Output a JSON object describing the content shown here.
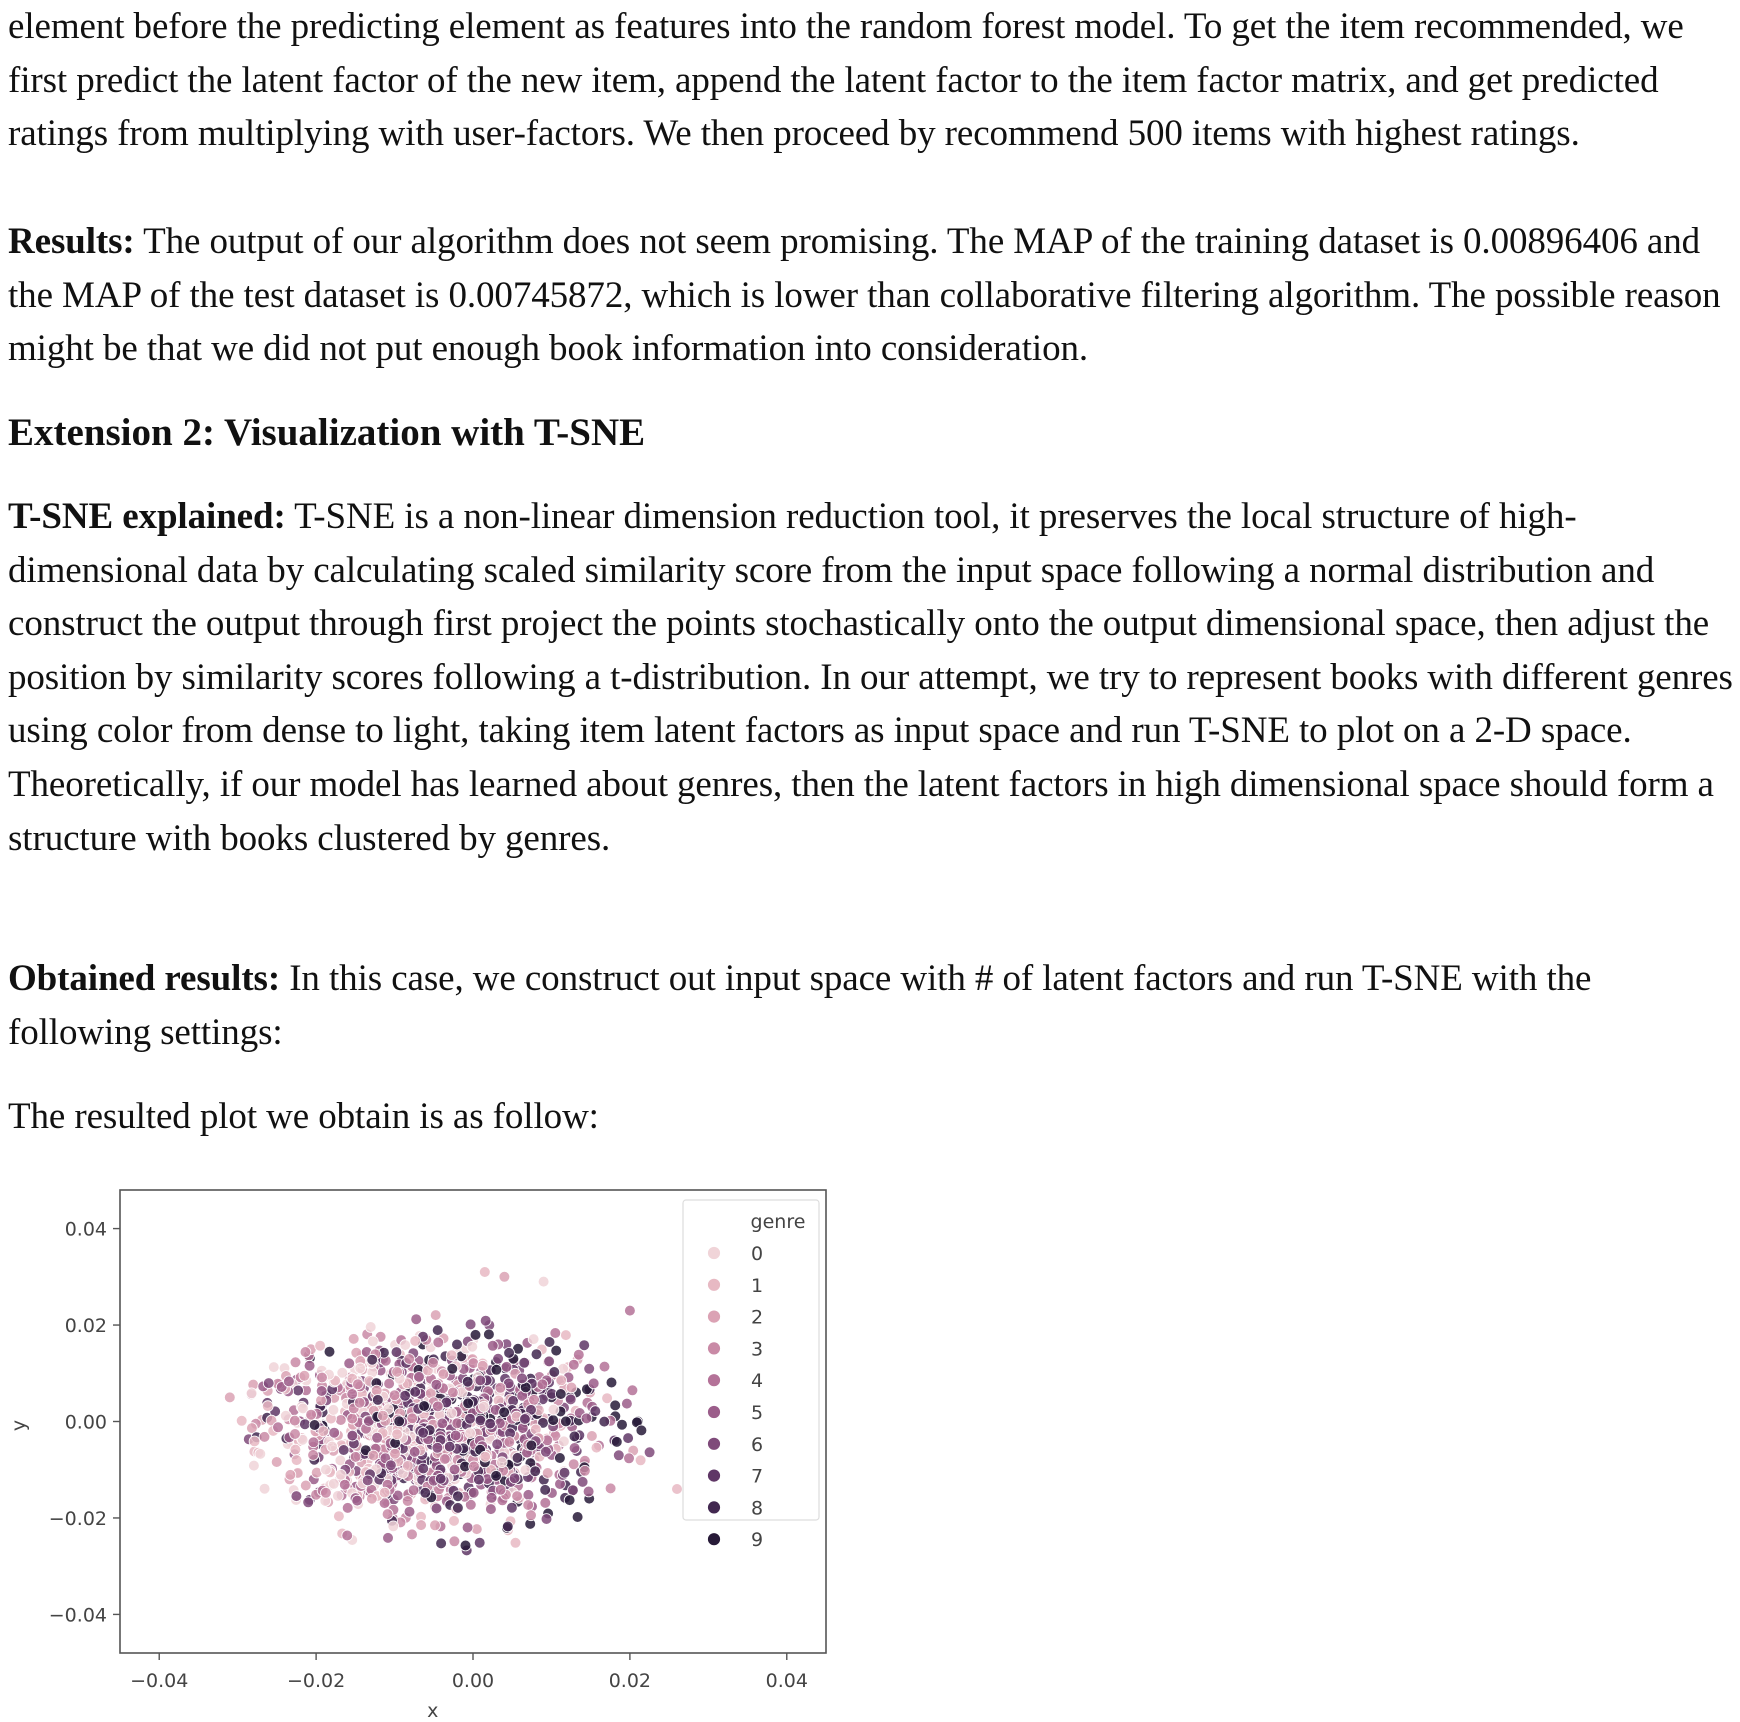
{
  "paragraph1": {
    "text": "element before the predicting element as features into the random forest model. To get the item recommended, we first predict the latent factor of the new item, append the latent factor to the item factor matrix, and get predicted ratings from multiplying with user-factors. We then proceed by recommend 500 items with highest ratings."
  },
  "results": {
    "lead": "Results:",
    "text": " The output of our algorithm does not seem promising. The MAP of the training dataset is 0.00896406 and the MAP of the test dataset is 0.00745872, which is lower than collaborative filtering algorithm. The possible reason might be that we did not put enough book information into consideration."
  },
  "section_heading": "Extension 2: Visualization with T-SNE",
  "tsne_explained": {
    "lead": "T-SNE explained:",
    "text": " T-SNE is a non-linear dimension reduction tool, it preserves the local structure of high-dimensional data by calculating scaled similarity score from the input space following a normal distribution and construct the output through first project the points stochastically onto the output dimensional space, then adjust the position by similarity scores following a t-distribution. In our attempt, we try to represent books with different genres using color from dense to light, taking item latent factors as input space and run T-SNE to plot on a 2-D space. Theoretically, if our model has learned about genres, then the latent factors in high dimensional space should form a structure with books clustered by genres."
  },
  "obtained_results": {
    "lead": "Obtained results:",
    "text": " In this case, we construct out input space with # of latent factors and run T-SNE with the following settings:"
  },
  "plot_intro": "The resulted plot we obtain is as follow:",
  "chart_data": {
    "type": "scatter",
    "title": "",
    "xlabel": "x",
    "ylabel": "y",
    "xlim": [
      -0.045,
      0.045
    ],
    "ylim": [
      -0.048,
      0.048
    ],
    "xticks": [
      "−0.04",
      "−0.02",
      "0.00",
      "0.02",
      "0.04"
    ],
    "xtick_values": [
      -0.04,
      -0.02,
      0.0,
      0.02,
      0.04
    ],
    "yticks": [
      "0.04",
      "0.02",
      "0.00",
      "−0.02",
      "−0.04"
    ],
    "ytick_values": [
      0.04,
      0.02,
      0.0,
      -0.02,
      -0.04
    ],
    "grid": false,
    "legend": {
      "title": "genre",
      "placement": "upper-right",
      "labels": [
        "0",
        "1",
        "2",
        "3",
        "4",
        "5",
        "6",
        "7",
        "8",
        "9"
      ]
    },
    "genre_colors": [
      "#f0d4d8",
      "#e7b9c3",
      "#dba2b4",
      "#c98aa6",
      "#b47298",
      "#9b5d8a",
      "#7f4a7a",
      "#5f3766",
      "#422850",
      "#271a38"
    ],
    "point_cloud": {
      "n_points": 1400,
      "center": [
        -0.004,
        -0.002
      ],
      "x_range": [
        -0.03,
        0.025
      ],
      "y_range": [
        -0.028,
        0.03
      ],
      "note_dark_genres_shift_right": true
    },
    "outliers": [
      {
        "x": -0.031,
        "y": 0.005,
        "genre": 2
      },
      {
        "x": 0.02,
        "y": 0.023,
        "genre": 4
      },
      {
        "x": 0.0015,
        "y": 0.031,
        "genre": 1
      },
      {
        "x": 0.004,
        "y": 0.03,
        "genre": 2
      },
      {
        "x": 0.009,
        "y": 0.029,
        "genre": 0
      },
      {
        "x": 0.026,
        "y": -0.014,
        "genre": 1
      }
    ]
  }
}
